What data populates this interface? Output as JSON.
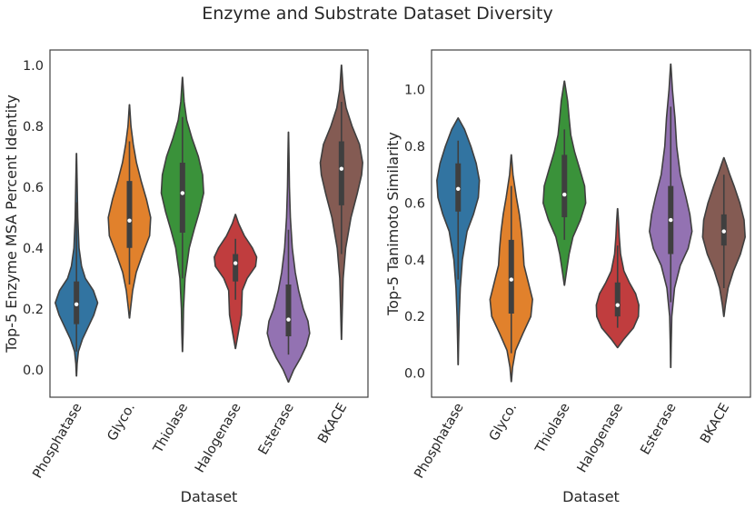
{
  "figure": {
    "title": "Enzyme and Substrate Dataset Diversity"
  },
  "chart_data": [
    {
      "type": "violin",
      "title": "",
      "xlabel": "Dataset",
      "ylabel": "Top-5 Enzyme MSA Percent Identity",
      "ylim": [
        -0.09,
        1.05
      ],
      "yticks": [
        0.0,
        0.2,
        0.4,
        0.6,
        0.8,
        1.0
      ],
      "ytick_labels": [
        "0.0",
        "0.2",
        "0.4",
        "0.6",
        "0.8",
        "1.0"
      ],
      "categories": [
        "Phosphatase",
        "Glyco.",
        "Thiolase",
        "Halogenase",
        "Esterase",
        "BKACE"
      ],
      "colors": [
        "#3274a1",
        "#e1812c",
        "#3a923a",
        "#c03d3e",
        "#9372b2",
        "#845b53"
      ],
      "series": [
        {
          "name": "Phosphatase",
          "min": -0.02,
          "max": 0.71,
          "q1": 0.15,
          "median": 0.215,
          "q3": 0.29,
          "whisker_low": 0.06,
          "whisker_high": 0.55,
          "density": [
            [
              -0.02,
              0.005
            ],
            [
              0.02,
              0.03
            ],
            [
              0.06,
              0.09
            ],
            [
              0.1,
              0.28
            ],
            [
              0.14,
              0.55
            ],
            [
              0.18,
              0.82
            ],
            [
              0.22,
              1.0
            ],
            [
              0.26,
              0.8
            ],
            [
              0.3,
              0.42
            ],
            [
              0.34,
              0.24
            ],
            [
              0.4,
              0.12
            ],
            [
              0.5,
              0.06
            ],
            [
              0.6,
              0.035
            ],
            [
              0.71,
              0.005
            ]
          ]
        },
        {
          "name": "Glyco.",
          "min": 0.17,
          "max": 0.87,
          "q1": 0.4,
          "median": 0.49,
          "q3": 0.62,
          "whisker_low": 0.28,
          "whisker_high": 0.75,
          "density": [
            [
              0.17,
              0.005
            ],
            [
              0.2,
              0.05
            ],
            [
              0.26,
              0.15
            ],
            [
              0.32,
              0.32
            ],
            [
              0.38,
              0.62
            ],
            [
              0.44,
              0.95
            ],
            [
              0.5,
              1.0
            ],
            [
              0.56,
              0.8
            ],
            [
              0.62,
              0.55
            ],
            [
              0.68,
              0.33
            ],
            [
              0.74,
              0.18
            ],
            [
              0.8,
              0.07
            ],
            [
              0.87,
              0.005
            ]
          ]
        },
        {
          "name": "Thiolase",
          "min": 0.06,
          "max": 0.96,
          "q1": 0.45,
          "median": 0.58,
          "q3": 0.68,
          "whisker_low": 0.3,
          "whisker_high": 0.83,
          "density": [
            [
              0.06,
              0.005
            ],
            [
              0.12,
              0.03
            ],
            [
              0.2,
              0.05
            ],
            [
              0.3,
              0.12
            ],
            [
              0.4,
              0.32
            ],
            [
              0.46,
              0.55
            ],
            [
              0.52,
              0.8
            ],
            [
              0.58,
              1.0
            ],
            [
              0.64,
              0.95
            ],
            [
              0.7,
              0.75
            ],
            [
              0.76,
              0.45
            ],
            [
              0.82,
              0.2
            ],
            [
              0.88,
              0.08
            ],
            [
              0.96,
              0.005
            ]
          ]
        },
        {
          "name": "Halogenase",
          "min": 0.07,
          "max": 0.51,
          "q1": 0.29,
          "median": 0.35,
          "q3": 0.38,
          "whisker_low": 0.23,
          "whisker_high": 0.43,
          "density": [
            [
              0.07,
              0.005
            ],
            [
              0.1,
              0.08
            ],
            [
              0.14,
              0.18
            ],
            [
              0.18,
              0.28
            ],
            [
              0.22,
              0.3
            ],
            [
              0.26,
              0.32
            ],
            [
              0.3,
              0.55
            ],
            [
              0.34,
              0.95
            ],
            [
              0.37,
              1.0
            ],
            [
              0.4,
              0.8
            ],
            [
              0.44,
              0.42
            ],
            [
              0.48,
              0.15
            ],
            [
              0.51,
              0.005
            ]
          ]
        },
        {
          "name": "Esterase",
          "min": -0.04,
          "max": 0.78,
          "q1": 0.11,
          "median": 0.165,
          "q3": 0.28,
          "whisker_low": 0.05,
          "whisker_high": 0.46,
          "density": [
            [
              -0.04,
              0.005
            ],
            [
              0.0,
              0.25
            ],
            [
              0.04,
              0.58
            ],
            [
              0.08,
              0.85
            ],
            [
              0.12,
              1.0
            ],
            [
              0.16,
              0.92
            ],
            [
              0.2,
              0.7
            ],
            [
              0.26,
              0.48
            ],
            [
              0.32,
              0.32
            ],
            [
              0.4,
              0.18
            ],
            [
              0.5,
              0.09
            ],
            [
              0.6,
              0.045
            ],
            [
              0.7,
              0.025
            ],
            [
              0.78,
              0.005
            ]
          ]
        },
        {
          "name": "BKACE",
          "min": 0.1,
          "max": 1.0,
          "q1": 0.54,
          "median": 0.66,
          "q3": 0.75,
          "whisker_low": 0.38,
          "whisker_high": 0.88,
          "density": [
            [
              0.1,
              0.005
            ],
            [
              0.2,
              0.04
            ],
            [
              0.3,
              0.08
            ],
            [
              0.4,
              0.2
            ],
            [
              0.5,
              0.45
            ],
            [
              0.58,
              0.75
            ],
            [
              0.64,
              0.95
            ],
            [
              0.68,
              1.0
            ],
            [
              0.74,
              0.85
            ],
            [
              0.8,
              0.5
            ],
            [
              0.86,
              0.22
            ],
            [
              0.92,
              0.08
            ],
            [
              1.0,
              0.005
            ]
          ]
        }
      ]
    },
    {
      "type": "violin",
      "title": "",
      "xlabel": "Dataset",
      "ylabel": "Top-5 Tanimoto Similarity",
      "ylim": [
        -0.085,
        1.14
      ],
      "yticks": [
        0.0,
        0.2,
        0.4,
        0.6,
        0.8,
        1.0
      ],
      "ytick_labels": [
        "0.0",
        "0.2",
        "0.4",
        "0.6",
        "0.8",
        "1.0"
      ],
      "categories": [
        "Phosphatase",
        "Glyco.",
        "Thiolase",
        "Halogenase",
        "Esterase",
        "BKACE"
      ],
      "colors": [
        "#3274a1",
        "#e1812c",
        "#3a923a",
        "#c03d3e",
        "#9372b2",
        "#845b53"
      ],
      "series": [
        {
          "name": "Phosphatase",
          "min": 0.03,
          "max": 0.9,
          "q1": 0.57,
          "median": 0.65,
          "q3": 0.74,
          "whisker_low": 0.33,
          "whisker_high": 0.82,
          "density": [
            [
              0.03,
              0.005
            ],
            [
              0.1,
              0.02
            ],
            [
              0.2,
              0.05
            ],
            [
              0.3,
              0.1
            ],
            [
              0.4,
              0.2
            ],
            [
              0.5,
              0.42
            ],
            [
              0.56,
              0.72
            ],
            [
              0.62,
              0.95
            ],
            [
              0.68,
              1.0
            ],
            [
              0.74,
              0.85
            ],
            [
              0.8,
              0.6
            ],
            [
              0.86,
              0.3
            ],
            [
              0.9,
              0.005
            ]
          ]
        },
        {
          "name": "Glyco.",
          "min": -0.03,
          "max": 0.77,
          "q1": 0.21,
          "median": 0.33,
          "q3": 0.47,
          "whisker_low": 0.07,
          "whisker_high": 0.66,
          "density": [
            [
              -0.03,
              0.005
            ],
            [
              0.02,
              0.06
            ],
            [
              0.08,
              0.2
            ],
            [
              0.14,
              0.55
            ],
            [
              0.2,
              0.92
            ],
            [
              0.26,
              1.0
            ],
            [
              0.32,
              0.8
            ],
            [
              0.38,
              0.6
            ],
            [
              0.44,
              0.55
            ],
            [
              0.5,
              0.48
            ],
            [
              0.56,
              0.38
            ],
            [
              0.62,
              0.24
            ],
            [
              0.7,
              0.08
            ],
            [
              0.77,
              0.005
            ]
          ]
        },
        {
          "name": "Thiolase",
          "min": 0.31,
          "max": 1.03,
          "q1": 0.55,
          "median": 0.63,
          "q3": 0.77,
          "whisker_low": 0.47,
          "whisker_high": 0.86,
          "density": [
            [
              0.31,
              0.005
            ],
            [
              0.36,
              0.1
            ],
            [
              0.42,
              0.22
            ],
            [
              0.48,
              0.4
            ],
            [
              0.54,
              0.75
            ],
            [
              0.6,
              1.0
            ],
            [
              0.66,
              0.95
            ],
            [
              0.72,
              0.72
            ],
            [
              0.78,
              0.48
            ],
            [
              0.84,
              0.3
            ],
            [
              0.9,
              0.22
            ],
            [
              0.96,
              0.15
            ],
            [
              1.03,
              0.005
            ]
          ]
        },
        {
          "name": "Halogenase",
          "min": 0.09,
          "max": 0.58,
          "q1": 0.2,
          "median": 0.24,
          "q3": 0.32,
          "whisker_low": 0.16,
          "whisker_high": 0.45,
          "density": [
            [
              0.09,
              0.005
            ],
            [
              0.12,
              0.3
            ],
            [
              0.16,
              0.75
            ],
            [
              0.2,
              0.98
            ],
            [
              0.24,
              1.0
            ],
            [
              0.28,
              0.85
            ],
            [
              0.32,
              0.55
            ],
            [
              0.36,
              0.3
            ],
            [
              0.42,
              0.14
            ],
            [
              0.48,
              0.08
            ],
            [
              0.54,
              0.04
            ],
            [
              0.58,
              0.005
            ]
          ]
        },
        {
          "name": "Esterase",
          "min": 0.02,
          "max": 1.09,
          "q1": 0.42,
          "median": 0.54,
          "q3": 0.66,
          "whisker_low": 0.25,
          "whisker_high": 0.94,
          "density": [
            [
              0.02,
              0.005
            ],
            [
              0.1,
              0.02
            ],
            [
              0.2,
              0.05
            ],
            [
              0.3,
              0.18
            ],
            [
              0.38,
              0.45
            ],
            [
              0.44,
              0.82
            ],
            [
              0.5,
              1.0
            ],
            [
              0.56,
              0.9
            ],
            [
              0.62,
              0.72
            ],
            [
              0.7,
              0.45
            ],
            [
              0.8,
              0.28
            ],
            [
              0.9,
              0.2
            ],
            [
              1.0,
              0.08
            ],
            [
              1.09,
              0.005
            ]
          ]
        },
        {
          "name": "BKACE",
          "min": 0.2,
          "max": 0.76,
          "q1": 0.45,
          "median": 0.5,
          "q3": 0.56,
          "whisker_low": 0.3,
          "whisker_high": 0.7,
          "density": [
            [
              0.2,
              0.005
            ],
            [
              0.24,
              0.07
            ],
            [
              0.3,
              0.2
            ],
            [
              0.36,
              0.45
            ],
            [
              0.42,
              0.78
            ],
            [
              0.48,
              1.0
            ],
            [
              0.54,
              0.95
            ],
            [
              0.6,
              0.75
            ],
            [
              0.66,
              0.48
            ],
            [
              0.7,
              0.28
            ],
            [
              0.74,
              0.1
            ],
            [
              0.76,
              0.005
            ]
          ]
        }
      ]
    }
  ]
}
